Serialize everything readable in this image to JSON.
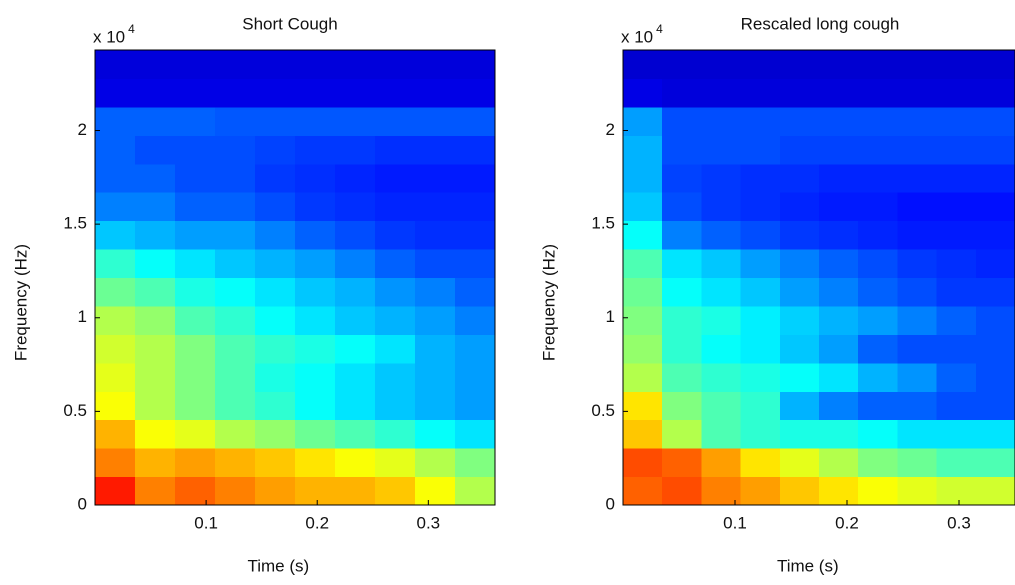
{
  "chart_data": [
    {
      "type": "heatmap",
      "title": "Short Cough",
      "x_label": "Time (s)",
      "y_label": "Frequency (Hz)",
      "y_multiplier": "x 10",
      "y_exponent": "4",
      "xlim": [
        0,
        0.36
      ],
      "ylim": [
        0,
        2.43
      ],
      "xticks": [
        0.1,
        0.2,
        0.3
      ],
      "yticks": [
        0,
        0.5,
        1,
        1.5,
        2
      ],
      "z": [
        [
          0.85,
          0.75,
          0.78,
          0.75,
          0.72,
          0.7,
          0.7,
          0.68,
          0.62,
          0.55
        ],
        [
          0.75,
          0.7,
          0.72,
          0.7,
          0.68,
          0.65,
          0.62,
          0.6,
          0.55,
          0.5
        ],
        [
          0.7,
          0.62,
          0.6,
          0.55,
          0.52,
          0.48,
          0.45,
          0.42,
          0.38,
          0.35
        ],
        [
          0.62,
          0.55,
          0.5,
          0.45,
          0.42,
          0.38,
          0.35,
          0.32,
          0.3,
          0.28
        ],
        [
          0.6,
          0.55,
          0.5,
          0.45,
          0.4,
          0.38,
          0.35,
          0.32,
          0.3,
          0.28
        ],
        [
          0.58,
          0.55,
          0.5,
          0.45,
          0.42,
          0.4,
          0.38,
          0.35,
          0.3,
          0.28
        ],
        [
          0.55,
          0.52,
          0.45,
          0.42,
          0.38,
          0.35,
          0.32,
          0.3,
          0.28,
          0.25
        ],
        [
          0.48,
          0.45,
          0.4,
          0.38,
          0.35,
          0.32,
          0.3,
          0.27,
          0.25,
          0.22
        ],
        [
          0.42,
          0.38,
          0.35,
          0.32,
          0.3,
          0.28,
          0.25,
          0.22,
          0.2,
          0.2
        ],
        [
          0.32,
          0.3,
          0.28,
          0.28,
          0.25,
          0.22,
          0.2,
          0.18,
          0.17,
          0.17
        ],
        [
          0.25,
          0.25,
          0.22,
          0.22,
          0.2,
          0.18,
          0.17,
          0.16,
          0.16,
          0.16
        ],
        [
          0.22,
          0.22,
          0.2,
          0.2,
          0.18,
          0.17,
          0.16,
          0.15,
          0.15,
          0.15
        ],
        [
          0.22,
          0.2,
          0.2,
          0.2,
          0.19,
          0.18,
          0.18,
          0.17,
          0.17,
          0.17
        ],
        [
          0.22,
          0.22,
          0.22,
          0.21,
          0.21,
          0.21,
          0.21,
          0.21,
          0.21,
          0.21
        ],
        [
          0.1,
          0.1,
          0.1,
          0.1,
          0.1,
          0.1,
          0.1,
          0.1,
          0.1,
          0.1
        ],
        [
          0.09,
          0.09,
          0.09,
          0.09,
          0.09,
          0.09,
          0.09,
          0.09,
          0.09,
          0.09
        ]
      ]
    },
    {
      "type": "heatmap",
      "title": "Rescaled long cough",
      "x_label": "Time (s)",
      "y_label": "Frequency (Hz)",
      "y_multiplier": "x 10",
      "y_exponent": "4",
      "xlim": [
        0,
        0.35
      ],
      "ylim": [
        0,
        2.43
      ],
      "xticks": [
        0.1,
        0.2,
        0.3
      ],
      "yticks": [
        0,
        0.5,
        1,
        1.5,
        2
      ],
      "z": [
        [
          0.78,
          0.8,
          0.75,
          0.72,
          0.68,
          0.65,
          0.62,
          0.6,
          0.58,
          0.58
        ],
        [
          0.8,
          0.78,
          0.72,
          0.65,
          0.6,
          0.55,
          0.5,
          0.48,
          0.45,
          0.45
        ],
        [
          0.68,
          0.55,
          0.45,
          0.42,
          0.4,
          0.4,
          0.38,
          0.35,
          0.35,
          0.35
        ],
        [
          0.65,
          0.5,
          0.45,
          0.42,
          0.3,
          0.25,
          0.22,
          0.22,
          0.2,
          0.2
        ],
        [
          0.55,
          0.45,
          0.42,
          0.4,
          0.38,
          0.35,
          0.3,
          0.27,
          0.22,
          0.2
        ],
        [
          0.52,
          0.42,
          0.38,
          0.36,
          0.32,
          0.28,
          0.22,
          0.2,
          0.2,
          0.2
        ],
        [
          0.5,
          0.42,
          0.4,
          0.36,
          0.33,
          0.3,
          0.28,
          0.25,
          0.22,
          0.2
        ],
        [
          0.48,
          0.38,
          0.35,
          0.32,
          0.28,
          0.25,
          0.22,
          0.2,
          0.18,
          0.18
        ],
        [
          0.45,
          0.35,
          0.32,
          0.28,
          0.25,
          0.22,
          0.2,
          0.18,
          0.17,
          0.16
        ],
        [
          0.38,
          0.25,
          0.22,
          0.2,
          0.18,
          0.17,
          0.16,
          0.15,
          0.15,
          0.15
        ],
        [
          0.32,
          0.2,
          0.18,
          0.17,
          0.16,
          0.15,
          0.15,
          0.14,
          0.14,
          0.14
        ],
        [
          0.3,
          0.19,
          0.18,
          0.17,
          0.17,
          0.16,
          0.16,
          0.16,
          0.16,
          0.16
        ],
        [
          0.3,
          0.2,
          0.2,
          0.2,
          0.19,
          0.19,
          0.19,
          0.19,
          0.19,
          0.19
        ],
        [
          0.28,
          0.2,
          0.2,
          0.2,
          0.2,
          0.2,
          0.2,
          0.2,
          0.2,
          0.2
        ],
        [
          0.1,
          0.09,
          0.09,
          0.09,
          0.09,
          0.09,
          0.09,
          0.09,
          0.09,
          0.09
        ],
        [
          0.08,
          0.08,
          0.08,
          0.08,
          0.08,
          0.08,
          0.08,
          0.08,
          0.08,
          0.08
        ]
      ]
    }
  ]
}
